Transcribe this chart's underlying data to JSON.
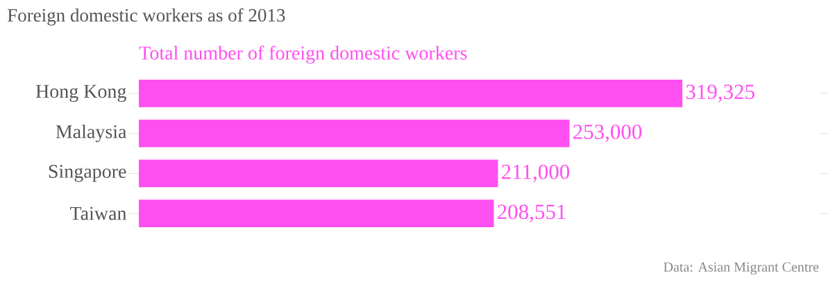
{
  "chart_data": {
    "type": "bar",
    "orientation": "horizontal",
    "title": "Foreign domestic workers as of 2013",
    "categories": [
      "Hong Kong",
      "Malaysia",
      "Singapore",
      "Taiwan"
    ],
    "series": [
      {
        "name": "Total number of foreign domestic workers",
        "color": "#ff4ff0",
        "values": [
          319325,
          253000,
          211000,
          208551
        ],
        "value_labels": [
          "319,325",
          "253,000",
          "211,000",
          "208,551"
        ]
      }
    ],
    "legend": "top left",
    "annotations": [
      "Data: Asian Migrant Centre"
    ]
  }
}
